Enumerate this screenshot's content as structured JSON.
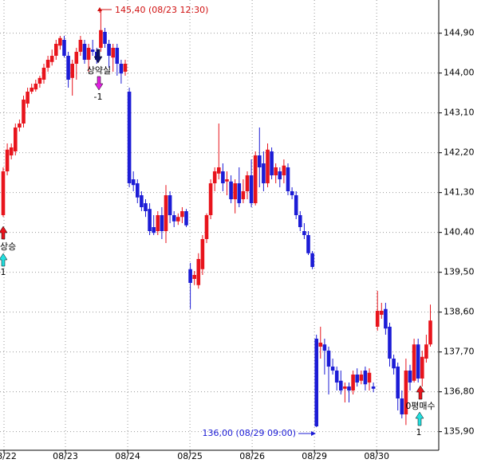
{
  "chart_data": {
    "type": "candlestick",
    "up_color": "#e8141c",
    "down_color": "#1c1cd6",
    "grid": true,
    "ylim": [
      135.48,
      145.65
    ],
    "yticks": [
      {
        "value": 144.9,
        "label": "144,90"
      },
      {
        "value": 144.0,
        "label": "144,00"
      },
      {
        "value": 143.1,
        "label": "143,10"
      },
      {
        "value": 142.2,
        "label": "142,20"
      },
      {
        "value": 141.3,
        "label": "141,30"
      },
      {
        "value": 140.4,
        "label": "140,40"
      },
      {
        "value": 139.5,
        "label": "139,50"
      },
      {
        "value": 138.6,
        "label": "138,60"
      },
      {
        "value": 137.7,
        "label": "137,70"
      },
      {
        "value": 136.8,
        "label": "136,80"
      },
      {
        "value": 135.9,
        "label": "135,90"
      }
    ],
    "xlim": [
      -0.784,
      107.06
    ],
    "xticks": [
      {
        "value": 0.2,
        "label": "08/22"
      },
      {
        "value": 15.3,
        "label": "08/23"
      },
      {
        "value": 30.6,
        "label": "08/24"
      },
      {
        "value": 45.9,
        "label": "08/25"
      },
      {
        "value": 61.2,
        "label": "08/26"
      },
      {
        "value": 76.5,
        "label": "08/29"
      },
      {
        "value": 91.8,
        "label": "08/30"
      }
    ],
    "open": [
      140.79,
      141.78,
      142.14,
      142.23,
      142.77,
      142.86,
      143.31,
      143.58,
      143.63,
      143.76,
      143.85,
      144.12,
      144.25,
      144.39,
      144.62,
      144.75,
      144.39,
      143.89,
      144.21,
      144.48,
      144.66,
      144.3,
      144.53,
      144.48,
      144.57,
      144.93,
      144.66,
      144.35,
      144.57,
      144.21,
      144.03,
      143.58,
      141.6,
      141.51,
      141.24,
      141.06,
      140.93,
      140.52,
      140.43,
      140.79,
      140.43,
      141.24,
      140.79,
      140.65,
      140.75,
      140.88,
      139.57,
      139.35,
      139.21,
      139.57,
      140.25,
      140.79,
      141.51,
      141.73,
      141.78,
      141.55,
      141.55,
      141.15,
      141.51,
      141.15,
      141.33,
      141.69,
      141.06,
      142.14,
      141.96,
      141.51,
      142.23,
      141.69,
      141.78,
      141.69,
      141.87,
      141.33,
      141.24,
      140.79,
      140.43,
      140.34,
      139.93,
      138.0,
      137.82,
      137.87,
      137.73,
      137.37,
      137.28,
      137.05,
      136.87,
      136.92,
      136.83,
      137.19,
      137.05,
      137.28,
      137.01,
      136.92,
      138.27,
      138.54,
      138.67,
      138.27,
      137.55,
      137.37,
      136.65,
      136.29,
      137.28,
      137.05,
      137.87,
      137.1,
      137.55,
      137.87
    ],
    "high": [
      141.87,
      142.41,
      142.41,
      142.86,
      142.95,
      143.49,
      143.67,
      143.76,
      143.85,
      143.94,
      144.21,
      144.39,
      144.53,
      144.75,
      144.84,
      144.84,
      144.48,
      144.3,
      144.57,
      144.84,
      144.75,
      144.66,
      144.75,
      144.57,
      145.4,
      145.02,
      144.75,
      144.66,
      144.66,
      144.3,
      144.3,
      143.67,
      141.78,
      141.6,
      141.33,
      141.15,
      141.06,
      140.79,
      140.88,
      140.97,
      141.47,
      141.33,
      140.88,
      140.83,
      140.97,
      140.93,
      139.71,
      139.53,
      139.93,
      140.34,
      140.83,
      141.6,
      141.87,
      142.86,
      141.96,
      141.78,
      141.69,
      141.6,
      141.87,
      141.6,
      141.78,
      142.05,
      142.23,
      142.77,
      142.23,
      142.41,
      142.32,
      141.96,
      141.87,
      142.05,
      141.96,
      141.42,
      141.33,
      140.88,
      140.61,
      140.43,
      139.98,
      138.09,
      138.27,
      138.0,
      137.82,
      137.55,
      137.37,
      137.28,
      137.01,
      137.01,
      137.28,
      137.33,
      137.28,
      137.37,
      137.33,
      137.01,
      139.08,
      138.81,
      138.81,
      138.36,
      137.64,
      137.46,
      136.83,
      137.55,
      137.41,
      138.0,
      138.0,
      137.73,
      138.09,
      138.77
    ],
    "low": [
      140.75,
      141.69,
      142.05,
      142.14,
      142.68,
      142.77,
      143.22,
      143.53,
      143.58,
      143.67,
      143.76,
      144.03,
      144.17,
      144.3,
      144.53,
      144.35,
      143.67,
      143.49,
      143.85,
      144.39,
      144.21,
      144.03,
      144.39,
      144.21,
      144.48,
      144.57,
      144.12,
      144.03,
      143.94,
      143.76,
      143.94,
      141.42,
      141.33,
      141.06,
      140.88,
      140.75,
      140.34,
      140.34,
      140.34,
      140.25,
      140.16,
      140.61,
      140.52,
      140.57,
      140.61,
      140.52,
      138.67,
      139.21,
      139.13,
      139.44,
      140.16,
      140.7,
      141.33,
      141.6,
      141.33,
      141.24,
      141.06,
      140.83,
      140.97,
      141.06,
      141.15,
      140.97,
      141.01,
      141.42,
      141.33,
      141.42,
      141.6,
      141.51,
      141.42,
      141.51,
      141.24,
      141.15,
      140.7,
      140.43,
      140.25,
      139.89,
      139.57,
      136.0,
      137.55,
      137.19,
      136.74,
      137.19,
      136.83,
      136.74,
      136.56,
      136.56,
      136.74,
      136.92,
      136.97,
      136.83,
      136.83,
      136.79,
      138.18,
      138.45,
      138.09,
      137.37,
      137.19,
      136.38,
      136.2,
      136.05,
      136.83,
      137.01,
      137.01,
      136.92,
      137.46,
      137.82
    ],
    "close": [
      141.78,
      142.27,
      142.32,
      142.77,
      142.86,
      143.4,
      143.58,
      143.67,
      143.76,
      143.89,
      144.12,
      144.3,
      144.39,
      144.66,
      144.79,
      144.39,
      143.85,
      144.21,
      144.48,
      144.75,
      144.3,
      144.57,
      144.48,
      144.3,
      144.97,
      144.66,
      144.39,
      144.57,
      144.21,
      143.99,
      144.21,
      141.51,
      141.47,
      141.19,
      140.97,
      140.88,
      140.43,
      140.39,
      140.79,
      140.43,
      141.24,
      140.79,
      140.65,
      140.75,
      140.88,
      140.56,
      139.26,
      139.44,
      139.8,
      140.25,
      140.79,
      141.51,
      141.78,
      141.87,
      141.51,
      141.6,
      141.15,
      141.51,
      141.06,
      141.33,
      141.69,
      141.06,
      142.14,
      141.87,
      141.51,
      142.27,
      141.69,
      141.87,
      141.6,
      141.91,
      141.33,
      141.24,
      140.79,
      140.52,
      140.34,
      139.93,
      139.62,
      136.02,
      137.91,
      137.73,
      137.37,
      137.28,
      137.01,
      136.83,
      136.92,
      136.83,
      137.19,
      137.01,
      137.19,
      136.97,
      137.23,
      136.87,
      138.63,
      138.63,
      138.23,
      137.55,
      137.33,
      136.65,
      136.29,
      137.28,
      137.01,
      137.87,
      137.1,
      137.59,
      137.87,
      138.41
    ],
    "max_label": "145,40 (08/23 12:30)",
    "min_label": "136,00 (08/29 09:00)",
    "signals": [
      {
        "label": "상승",
        "count": "1"
      },
      {
        "label": "상약실",
        "count": "-1"
      },
      {
        "label": "0평매수",
        "count": "1"
      }
    ]
  }
}
